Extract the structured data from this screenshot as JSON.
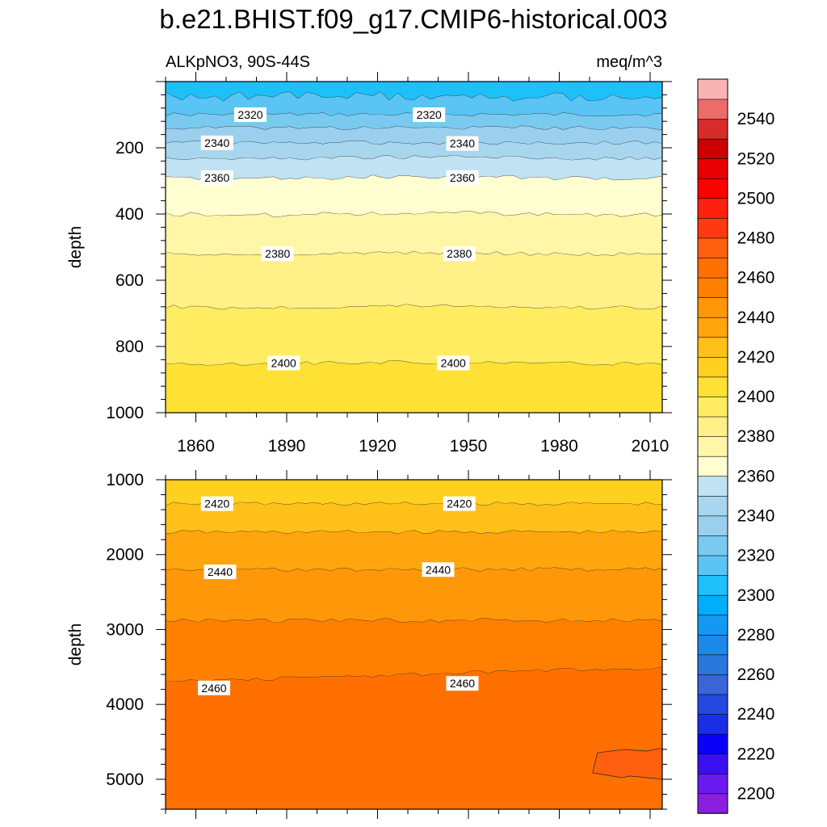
{
  "title": "b.e21.BHIST.f09_g17.CMIP6-historical.003",
  "left_subtitle": "ALKpNO3, 90S-44S",
  "right_subtitle": "meq/m^3",
  "chart_data": [
    {
      "type": "contour",
      "panel": "upper",
      "xlabel": "",
      "ylabel": "depth",
      "xlim": [
        1850,
        2014
      ],
      "ylim": [
        1000,
        0
      ],
      "x_ticks": [
        1860,
        1890,
        1920,
        1950,
        1980,
        2010
      ],
      "y_ticks": [
        200,
        400,
        600,
        800,
        1000
      ],
      "bands": [
        {
          "lower": 2300,
          "upper": 2310,
          "depth_top": 0,
          "depth_bottom": 45
        },
        {
          "lower": 2310,
          "upper": 2320,
          "depth_top": 45,
          "depth_bottom": 100
        },
        {
          "lower": 2320,
          "upper": 2330,
          "depth_top": 100,
          "depth_bottom": 140
        },
        {
          "lower": 2330,
          "upper": 2340,
          "depth_top": 140,
          "depth_bottom": 185
        },
        {
          "lower": 2340,
          "upper": 2350,
          "depth_top": 185,
          "depth_bottom": 230
        },
        {
          "lower": 2350,
          "upper": 2360,
          "depth_top": 230,
          "depth_bottom": 290
        },
        {
          "lower": 2360,
          "upper": 2370,
          "depth_top": 290,
          "depth_bottom": 400
        },
        {
          "lower": 2370,
          "upper": 2380,
          "depth_top": 400,
          "depth_bottom": 520
        },
        {
          "lower": 2380,
          "upper": 2390,
          "depth_top": 520,
          "depth_bottom": 680
        },
        {
          "lower": 2390,
          "upper": 2400,
          "depth_top": 680,
          "depth_bottom": 850
        },
        {
          "lower": 2400,
          "upper": 2410,
          "depth_top": 850,
          "depth_bottom": 1000
        }
      ],
      "contour_labels": [
        {
          "text": "2320",
          "year": 1878,
          "depth": 100
        },
        {
          "text": "2320",
          "year": 1937,
          "depth": 100
        },
        {
          "text": "2340",
          "year": 1867,
          "depth": 185
        },
        {
          "text": "2340",
          "year": 1948,
          "depth": 187
        },
        {
          "text": "2360",
          "year": 1867,
          "depth": 290
        },
        {
          "text": "2360",
          "year": 1948,
          "depth": 290
        },
        {
          "text": "2380",
          "year": 1887,
          "depth": 520
        },
        {
          "text": "2380",
          "year": 1947,
          "depth": 520
        },
        {
          "text": "2400",
          "year": 1889,
          "depth": 850
        },
        {
          "text": "2400",
          "year": 1945,
          "depth": 850
        }
      ]
    },
    {
      "type": "contour",
      "panel": "lower",
      "xlabel": "",
      "ylabel": "depth",
      "xlim": [
        1850,
        2014
      ],
      "ylim": [
        5400,
        1000
      ],
      "y_ticks": [
        1000,
        2000,
        3000,
        4000,
        5000
      ],
      "bands": [
        {
          "lower": 2410,
          "upper": 2420,
          "depth_top": 1000,
          "depth_bottom": 1320
        },
        {
          "lower": 2420,
          "upper": 2430,
          "depth_top": 1320,
          "depth_bottom": 1700
        },
        {
          "lower": 2430,
          "upper": 2440,
          "depth_top": 1700,
          "depth_bottom": 2200
        },
        {
          "lower": 2440,
          "upper": 2450,
          "depth_top": 2200,
          "depth_bottom": 2880
        },
        {
          "lower": 2450,
          "upper": 2460,
          "depth_top": 2880,
          "depth_bottom": 3700
        },
        {
          "lower": 2460,
          "upper": 2470,
          "depth_top": 3700,
          "depth_bottom": 5400
        }
      ],
      "patches": [
        {
          "lower": 2470,
          "upper": 2480,
          "years": [
            1991,
            2014
          ],
          "depth": [
            4580,
            5000
          ]
        }
      ],
      "contour_labels": [
        {
          "text": "2420",
          "year": 1867,
          "depth": 1320
        },
        {
          "text": "2420",
          "year": 1947,
          "depth": 1320
        },
        {
          "text": "2440",
          "year": 1868,
          "depth": 2230
        },
        {
          "text": "2440",
          "year": 1940,
          "depth": 2200
        },
        {
          "text": "2460",
          "year": 1866,
          "depth": 3780
        },
        {
          "text": "2460",
          "year": 1948,
          "depth": 3720
        }
      ]
    }
  ],
  "colorbar": {
    "levels": [
      2200,
      2210,
      2220,
      2230,
      2240,
      2250,
      2260,
      2270,
      2280,
      2290,
      2300,
      2310,
      2320,
      2330,
      2340,
      2350,
      2360,
      2370,
      2380,
      2390,
      2400,
      2410,
      2420,
      2430,
      2440,
      2450,
      2460,
      2470,
      2480,
      2490,
      2500,
      2510,
      2520,
      2530,
      2540,
      2550
    ],
    "tick_labels": [
      "2200",
      "2220",
      "2240",
      "2260",
      "2280",
      "2300",
      "2320",
      "2340",
      "2360",
      "2380",
      "2400",
      "2420",
      "2440",
      "2460",
      "2480",
      "2500",
      "2520",
      "2540"
    ],
    "colors": [
      "#8B1FE0",
      "#6A1AF0",
      "#3A10F0",
      "#0A00FA",
      "#1A2EE8",
      "#2448E0",
      "#3A64D8",
      "#2A78DC",
      "#1C88EA",
      "#1498F4",
      "#00AEFA",
      "#1EC0FA",
      "#5AC4F4",
      "#7ACAF0",
      "#9AD0EE",
      "#A8D6EE",
      "#C0E2F2",
      "#FFFED0",
      "#FFF6A8",
      "#FFF088",
      "#FFEC60",
      "#FFE034",
      "#FFD020",
      "#FFC01A",
      "#FFA50E",
      "#FF9808",
      "#FF8000",
      "#FF7000",
      "#FF6010",
      "#FF3A10",
      "#FF2010",
      "#FF0000",
      "#E80000",
      "#CC0000",
      "#D62C2C",
      "#EC6C6C",
      "#F8B4B4"
    ]
  }
}
